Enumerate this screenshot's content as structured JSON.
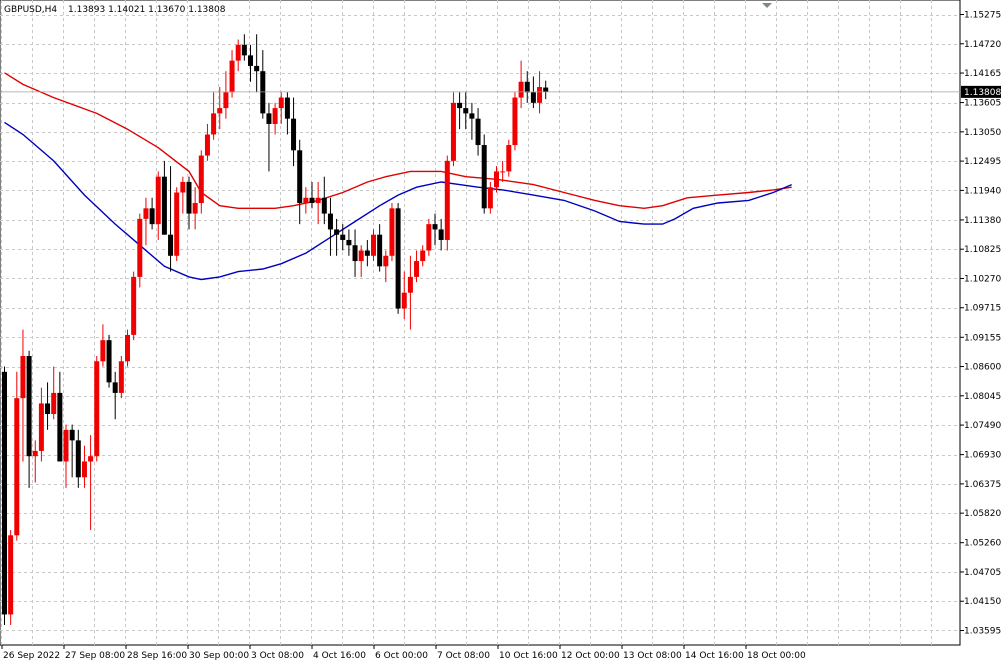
{
  "header": {
    "symbol": "GBPUSD,H4",
    "ohlc": "1.13893 1.14021 1.13670 1.13808"
  },
  "colors": {
    "bull": "#f00000",
    "bear": "#000000",
    "ma_fast": "#e00000",
    "ma_slow": "#0000c0",
    "grid": "#c8c8c8",
    "price_label_bg": "#000000",
    "price_label_fg": "#ffffff"
  },
  "chart_data": {
    "type": "candlestick",
    "title": "",
    "ylim": [
      1.0332,
      1.1555
    ],
    "y_ticks": [
      "1.15275",
      "1.14720",
      "1.14165",
      "1.13605",
      "1.13050",
      "1.12495",
      "1.11940",
      "1.11380",
      "1.10825",
      "1.10270",
      "1.09715",
      "1.09155",
      "1.08600",
      "1.08045",
      "1.07490",
      "1.06930",
      "1.06375",
      "1.05820",
      "1.05260",
      "1.04705",
      "1.04150",
      "1.03595"
    ],
    "x_ticks": [
      "26 Sep 2022",
      "27 Sep 08:00",
      "28 Sep 16:00",
      "30 Sep 00:00",
      "3 Oct 08:00",
      "4 Oct 16:00",
      "6 Oct 00:00",
      "7 Oct 08:00",
      "10 Oct 16:00",
      "12 Oct 00:00",
      "13 Oct 08:00",
      "14 Oct 16:00",
      "18 Oct 00:00"
    ],
    "current_price": "1.13808",
    "grid": true,
    "candles": [
      [
        1.085,
        1.086,
        1.037,
        1.039
      ],
      [
        1.039,
        1.055,
        1.037,
        1.054
      ],
      [
        1.054,
        1.085,
        1.053,
        1.08
      ],
      [
        1.08,
        1.093,
        1.068,
        1.088
      ],
      [
        1.088,
        1.089,
        1.063,
        1.069
      ],
      [
        1.069,
        1.072,
        1.064,
        1.07
      ],
      [
        1.07,
        1.082,
        1.068,
        1.079
      ],
      [
        1.079,
        1.083,
        1.074,
        1.077
      ],
      [
        1.077,
        1.086,
        1.076,
        1.081
      ],
      [
        1.081,
        1.085,
        1.068,
        1.068
      ],
      [
        1.068,
        1.075,
        1.063,
        1.074
      ],
      [
        1.074,
        1.075,
        1.065,
        1.072
      ],
      [
        1.072,
        1.074,
        1.063,
        1.065
      ],
      [
        1.065,
        1.071,
        1.063,
        1.068
      ],
      [
        1.068,
        1.073,
        1.055,
        1.069
      ],
      [
        1.069,
        1.088,
        1.068,
        1.087
      ],
      [
        1.087,
        1.094,
        1.086,
        1.091
      ],
      [
        1.091,
        1.092,
        1.082,
        1.083
      ],
      [
        1.083,
        1.085,
        1.076,
        1.081
      ],
      [
        1.081,
        1.088,
        1.08,
        1.087
      ],
      [
        1.087,
        1.093,
        1.086,
        1.092
      ],
      [
        1.092,
        1.104,
        1.091,
        1.103
      ],
      [
        1.103,
        1.115,
        1.101,
        1.114
      ],
      [
        1.114,
        1.118,
        1.109,
        1.116
      ],
      [
        1.116,
        1.118,
        1.112,
        1.113
      ],
      [
        1.113,
        1.123,
        1.11,
        1.122
      ],
      [
        1.122,
        1.125,
        1.111,
        1.111
      ],
      [
        1.111,
        1.124,
        1.104,
        1.107
      ],
      [
        1.107,
        1.12,
        1.106,
        1.119
      ],
      [
        1.119,
        1.122,
        1.115,
        1.121
      ],
      [
        1.121,
        1.122,
        1.112,
        1.115
      ],
      [
        1.115,
        1.12,
        1.112,
        1.117
      ],
      [
        1.117,
        1.127,
        1.115,
        1.126
      ],
      [
        1.126,
        1.132,
        1.125,
        1.13
      ],
      [
        1.13,
        1.138,
        1.129,
        1.134
      ],
      [
        1.134,
        1.139,
        1.131,
        1.135
      ],
      [
        1.135,
        1.142,
        1.133,
        1.138
      ],
      [
        1.138,
        1.146,
        1.137,
        1.144
      ],
      [
        1.144,
        1.148,
        1.142,
        1.147
      ],
      [
        1.147,
        1.149,
        1.144,
        1.145
      ],
      [
        1.145,
        1.147,
        1.14,
        1.143
      ],
      [
        1.143,
        1.149,
        1.138,
        1.142
      ],
      [
        1.142,
        1.146,
        1.133,
        1.134
      ],
      [
        1.134,
        1.136,
        1.123,
        1.132
      ],
      [
        1.132,
        1.136,
        1.13,
        1.135
      ],
      [
        1.135,
        1.138,
        1.132,
        1.137
      ],
      [
        1.137,
        1.138,
        1.13,
        1.133
      ],
      [
        1.133,
        1.137,
        1.124,
        1.127
      ],
      [
        1.127,
        1.129,
        1.113,
        1.117
      ],
      [
        1.117,
        1.12,
        1.115,
        1.118
      ],
      [
        1.118,
        1.121,
        1.116,
        1.117
      ],
      [
        1.117,
        1.121,
        1.113,
        1.118
      ],
      [
        1.118,
        1.122,
        1.113,
        1.115
      ],
      [
        1.115,
        1.118,
        1.107,
        1.112
      ],
      [
        1.112,
        1.114,
        1.107,
        1.111
      ],
      [
        1.111,
        1.113,
        1.108,
        1.11
      ],
      [
        1.11,
        1.112,
        1.107,
        1.109
      ],
      [
        1.109,
        1.112,
        1.103,
        1.106
      ],
      [
        1.106,
        1.109,
        1.103,
        1.108
      ],
      [
        1.108,
        1.11,
        1.105,
        1.107
      ],
      [
        1.107,
        1.112,
        1.106,
        1.111
      ],
      [
        1.111,
        1.113,
        1.104,
        1.105
      ],
      [
        1.105,
        1.108,
        1.102,
        1.107
      ],
      [
        1.107,
        1.117,
        1.106,
        1.116
      ],
      [
        1.116,
        1.117,
        1.096,
        1.097
      ],
      [
        1.097,
        1.104,
        1.095,
        1.1
      ],
      [
        1.1,
        1.107,
        1.093,
        1.103
      ],
      [
        1.103,
        1.108,
        1.102,
        1.106
      ],
      [
        1.106,
        1.109,
        1.105,
        1.108
      ],
      [
        1.108,
        1.114,
        1.107,
        1.113
      ],
      [
        1.113,
        1.115,
        1.109,
        1.112
      ],
      [
        1.112,
        1.114,
        1.108,
        1.11
      ],
      [
        1.11,
        1.126,
        1.108,
        1.125
      ],
      [
        1.125,
        1.138,
        1.124,
        1.136
      ],
      [
        1.136,
        1.138,
        1.131,
        1.135
      ],
      [
        1.135,
        1.138,
        1.131,
        1.134
      ],
      [
        1.134,
        1.136,
        1.129,
        1.133
      ],
      [
        1.133,
        1.135,
        1.126,
        1.128
      ],
      [
        1.128,
        1.13,
        1.115,
        1.116
      ],
      [
        1.116,
        1.121,
        1.115,
        1.12
      ],
      [
        1.12,
        1.124,
        1.119,
        1.123
      ],
      [
        1.123,
        1.125,
        1.121,
        1.123
      ],
      [
        1.123,
        1.129,
        1.122,
        1.128
      ],
      [
        1.128,
        1.138,
        1.127,
        1.137
      ],
      [
        1.137,
        1.144,
        1.135,
        1.14
      ],
      [
        1.14,
        1.142,
        1.136,
        1.138
      ],
      [
        1.138,
        1.141,
        1.135,
        1.136
      ],
      [
        1.136,
        1.142,
        1.134,
        1.139
      ],
      [
        1.1389,
        1.1402,
        1.1367,
        1.1381
      ]
    ],
    "ma_red": [
      [
        0,
        1.1417
      ],
      [
        3,
        1.1395
      ],
      [
        8,
        1.137
      ],
      [
        15,
        1.134
      ],
      [
        20,
        1.131
      ],
      [
        25,
        1.1275
      ],
      [
        30,
        1.123
      ],
      [
        32,
        1.119
      ],
      [
        35,
        1.1165
      ],
      [
        38,
        1.116
      ],
      [
        41,
        1.116
      ],
      [
        44,
        1.116
      ],
      [
        47,
        1.1165
      ],
      [
        51,
        1.1175
      ],
      [
        55,
        1.119
      ],
      [
        59,
        1.121
      ],
      [
        62,
        1.122
      ],
      [
        66,
        1.123
      ],
      [
        71,
        1.123
      ],
      [
        75,
        1.122
      ],
      [
        80,
        1.1215
      ],
      [
        86,
        1.1205
      ],
      [
        91,
        1.119
      ],
      [
        96,
        1.1175
      ],
      [
        100,
        1.1165
      ],
      [
        104,
        1.116
      ],
      [
        107,
        1.1165
      ],
      [
        111,
        1.118
      ],
      [
        116,
        1.1185
      ],
      [
        121,
        1.119
      ],
      [
        125,
        1.1195
      ],
      [
        128,
        1.12
      ]
    ],
    "ma_blue": [
      [
        0,
        1.1323
      ],
      [
        3,
        1.13
      ],
      [
        8,
        1.125
      ],
      [
        13,
        1.1185
      ],
      [
        18,
        1.113
      ],
      [
        22,
        1.109
      ],
      [
        26,
        1.105
      ],
      [
        30,
        1.103
      ],
      [
        32,
        1.1025
      ],
      [
        35,
        1.103
      ],
      [
        38,
        1.104
      ],
      [
        42,
        1.1045
      ],
      [
        45,
        1.1055
      ],
      [
        49,
        1.1075
      ],
      [
        53,
        1.1105
      ],
      [
        57,
        1.1135
      ],
      [
        61,
        1.1165
      ],
      [
        64,
        1.1185
      ],
      [
        67,
        1.12
      ],
      [
        71,
        1.121
      ],
      [
        74,
        1.1205
      ],
      [
        77,
        1.12
      ],
      [
        81,
        1.1195
      ],
      [
        86,
        1.1185
      ],
      [
        91,
        1.1175
      ],
      [
        96,
        1.1155
      ],
      [
        100,
        1.1135
      ],
      [
        104,
        1.113
      ],
      [
        107,
        1.113
      ],
      [
        109,
        1.114
      ],
      [
        112,
        1.116
      ],
      [
        116,
        1.117
      ],
      [
        121,
        1.1175
      ],
      [
        125,
        1.119
      ],
      [
        128,
        1.1205
      ]
    ]
  }
}
